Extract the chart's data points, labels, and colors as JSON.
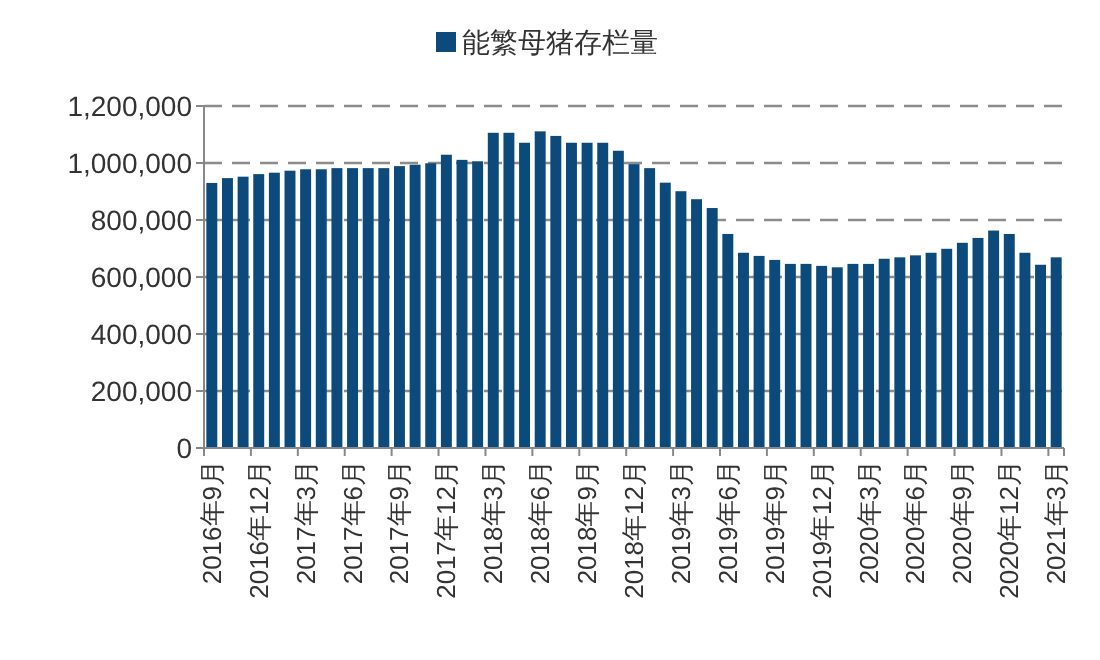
{
  "chart_data": {
    "type": "bar",
    "categories": [
      "2016年9月",
      null,
      null,
      "2016年12月",
      null,
      null,
      "2017年3月",
      null,
      null,
      "2017年6月",
      null,
      null,
      "2017年9月",
      null,
      null,
      "2017年12月",
      null,
      null,
      "2018年3月",
      null,
      null,
      "2018年6月",
      null,
      null,
      "2018年9月",
      null,
      null,
      "2018年12月",
      null,
      null,
      "2019年3月",
      null,
      null,
      "2019年6月",
      null,
      null,
      "2019年9月",
      null,
      null,
      "2019年12月",
      null,
      null,
      "2020年3月",
      null,
      null,
      "2020年6月",
      null,
      null,
      "2020年9月",
      null,
      null,
      "2020年12月",
      null,
      null,
      "2021年3月"
    ],
    "series": [
      {
        "name": "能繁母猪存栏量",
        "color": "#0d4a7c",
        "values": [
          930000,
          947000,
          952000,
          961000,
          966000,
          973000,
          978000,
          978000,
          982000,
          982000,
          982000,
          982000,
          989000,
          994000,
          999000,
          1029000,
          1011000,
          1006000,
          1106000,
          1106000,
          1071000,
          1111000,
          1095000,
          1071000,
          1071000,
          1071000,
          1043000,
          996000,
          982000,
          931000,
          901000,
          873000,
          842000,
          751000,
          685000,
          674000,
          660000,
          646000,
          646000,
          639000,
          634000,
          646000,
          646000,
          664000,
          669000,
          676000,
          685000,
          699000,
          720000,
          737000,
          763000,
          751000,
          685000,
          643000,
          669000
        ]
      }
    ],
    "ylim": [
      0,
      1200000
    ],
    "yticks": [
      {
        "value": 0,
        "label": "0"
      },
      {
        "value": 200000,
        "label": "200,000"
      },
      {
        "value": 400000,
        "label": "400,000"
      },
      {
        "value": 600000,
        "label": "600,000"
      },
      {
        "value": 800000,
        "label": "800,000"
      },
      {
        "value": 1000000,
        "label": "1,000,000"
      },
      {
        "value": 1200000,
        "label": "1,200,000"
      }
    ],
    "grid": "y",
    "legend": "top"
  }
}
